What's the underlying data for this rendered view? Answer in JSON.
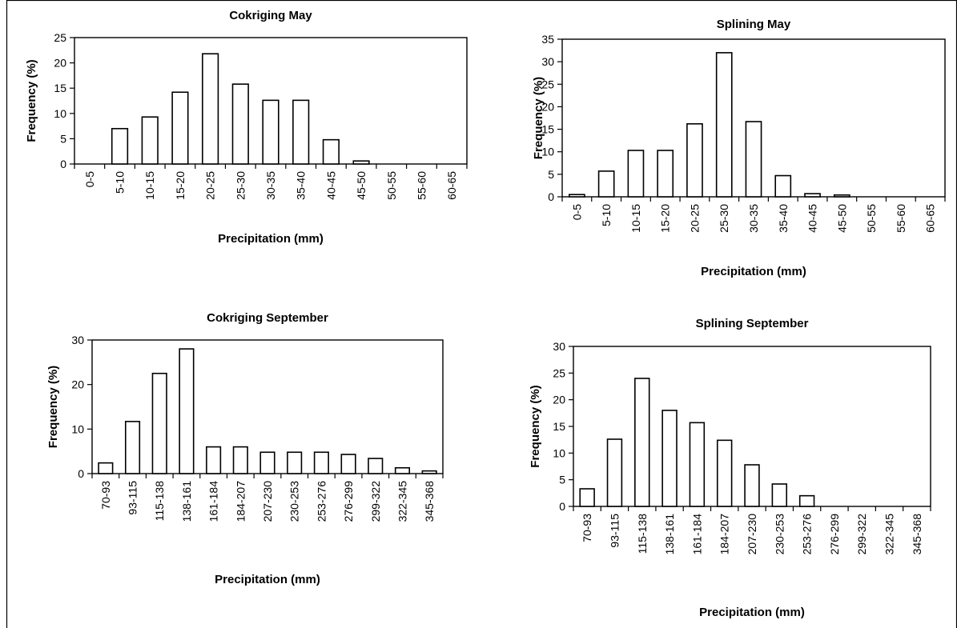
{
  "chart_data": [
    {
      "type": "bar",
      "title": "Cokriging May",
      "xlabel": "Precipitation (mm)",
      "ylabel": "Frequency (%)",
      "categories": [
        "0-5",
        "5-10",
        "10-15",
        "15-20",
        "20-25",
        "25-30",
        "30-35",
        "35-40",
        "40-45",
        "45-50",
        "50-55",
        "55-60",
        "60-65"
      ],
      "values": [
        0,
        7,
        9.3,
        14.2,
        21.8,
        15.8,
        12.6,
        12.6,
        4.8,
        0.6,
        0,
        0,
        0
      ],
      "ylim": [
        0,
        25
      ],
      "yticks": [
        0,
        5,
        10,
        15,
        20,
        25
      ],
      "grid": false
    },
    {
      "type": "bar",
      "title": "Splining May",
      "xlabel": "Precipitation (mm)",
      "ylabel": "Frequency (%)",
      "categories": [
        "0-5",
        "5-10",
        "10-15",
        "15-20",
        "20-25",
        "25-30",
        "30-35",
        "35-40",
        "40-45",
        "45-50",
        "50-55",
        "55-60",
        "60-65"
      ],
      "values": [
        0.5,
        5.7,
        10.3,
        10.3,
        16.2,
        32,
        16.7,
        4.7,
        0.7,
        0.4,
        0,
        0,
        0
      ],
      "ylim": [
        0,
        35
      ],
      "yticks": [
        0,
        5,
        10,
        15,
        20,
        25,
        30,
        35
      ],
      "grid": false
    },
    {
      "type": "bar",
      "title": "Cokriging September",
      "xlabel": "Precipitation (mm)",
      "ylabel": "Frequency (%)",
      "categories": [
        "70-93",
        "93-115",
        "115-138",
        "138-161",
        "161-184",
        "184-207",
        "207-230",
        "230-253",
        "253-276",
        "276-299",
        "299-322",
        "322-345",
        "345-368"
      ],
      "values": [
        2.4,
        11.7,
        22.5,
        28,
        6,
        6,
        4.8,
        4.8,
        4.8,
        4.3,
        3.4,
        1.3,
        0.6
      ],
      "ylim": [
        0,
        30
      ],
      "yticks": [
        0,
        10,
        20,
        30
      ],
      "grid": false
    },
    {
      "type": "bar",
      "title": "Splining September",
      "xlabel": "Precipitation (mm)",
      "ylabel": "Frequency (%)",
      "categories": [
        "70-93",
        "93-115",
        "115-138",
        "138-161",
        "161-184",
        "184-207",
        "207-230",
        "230-253",
        "253-276",
        "276-299",
        "299-322",
        "322-345",
        "345-368"
      ],
      "values": [
        3.3,
        12.6,
        24,
        18,
        15.7,
        12.4,
        7.8,
        4.2,
        2,
        0,
        0,
        0,
        0
      ],
      "ylim": [
        0,
        30
      ],
      "yticks": [
        0,
        5,
        10,
        15,
        20,
        25,
        30
      ],
      "grid": false
    }
  ]
}
